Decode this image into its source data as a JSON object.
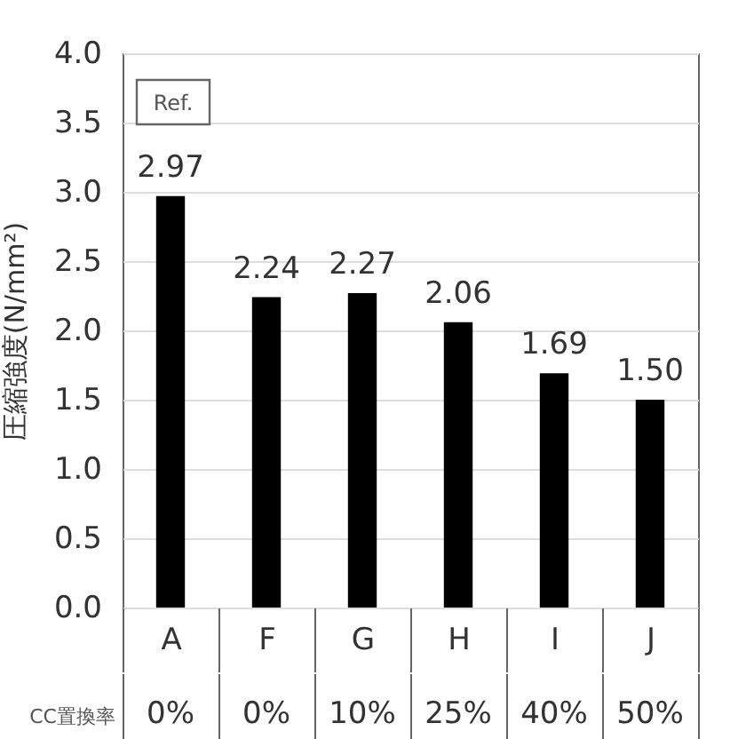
{
  "chart_data": {
    "type": "bar",
    "ylabel": "圧縮強度(N/mm²)",
    "xlabel": "CC置換率",
    "categories": [
      "A",
      "F",
      "G",
      "H",
      "I",
      "J"
    ],
    "values": [
      2.97,
      2.24,
      2.27,
      2.06,
      1.69,
      1.5
    ],
    "value_labels": [
      "2.97",
      "2.24",
      "2.27",
      "2.06",
      "1.69",
      "1.50"
    ],
    "color": "#000000",
    "ylim": [
      0,
      4
    ],
    "yticks": [
      {
        "value": 0,
        "label": "0.0"
      },
      0.5,
      {
        "value": 1,
        "label": "1.0"
      },
      1.5,
      {
        "value": 2,
        "label": "2.0"
      },
      2.5,
      {
        "value": 3,
        "label": "3.0"
      },
      3.5,
      {
        "value": 4,
        "label": "4.0"
      }
    ],
    "grid": "y",
    "annotations": [
      "Ref.",
      "0%",
      "0%",
      "10%",
      "25%",
      "40%",
      "50%"
    ]
  }
}
